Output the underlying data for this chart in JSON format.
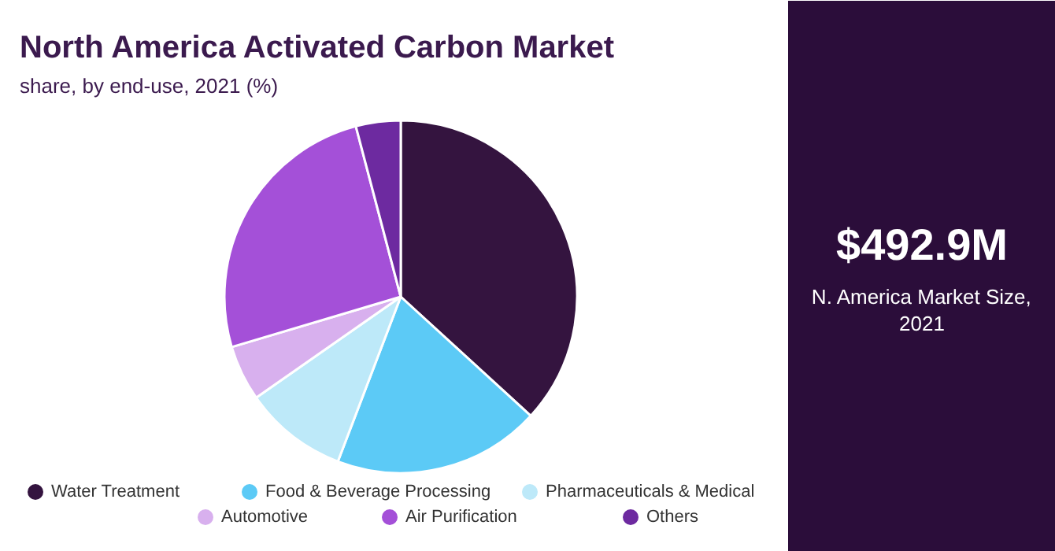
{
  "chart_data": {
    "type": "pie",
    "title": "North America Activated Carbon Market",
    "subtitle": "share, by end-use, 2021 (%)",
    "categories": [
      "Water Treatment",
      "Food & Beverage Processing",
      "Pharmaceuticals & Medical",
      "Automotive",
      "Air Purification",
      "Others"
    ],
    "values": [
      36.8,
      19,
      9.5,
      5.1,
      25.5,
      4.1
    ],
    "colors": [
      "#34143f",
      "#5ccaf6",
      "#bde9f9",
      "#d8b0ee",
      "#a450d8",
      "#6d2aa0"
    ],
    "legend": "bottom",
    "annotations": [
      "$492.9M",
      "N. America Market Size, 2021"
    ]
  }
}
